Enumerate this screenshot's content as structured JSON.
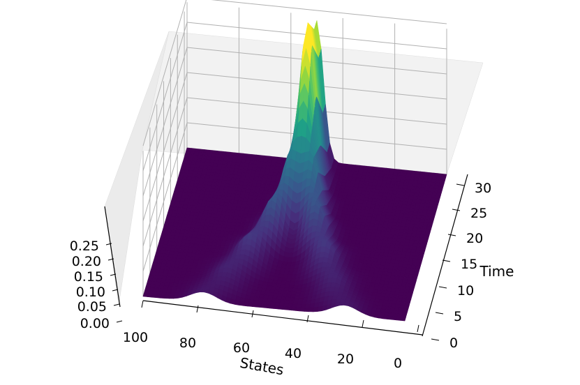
{
  "chart_data": {
    "type": "surface3d",
    "title": "",
    "xlabel": "States",
    "ylabel": "Time",
    "zlabel": "",
    "x_ticks": [
      "100",
      "80",
      "60",
      "40",
      "20",
      "0"
    ],
    "y_ticks": [
      "0",
      "5",
      "10",
      "15",
      "20",
      "25",
      "30"
    ],
    "z_ticks": [
      "0.00",
      "0.05",
      "0.10",
      "0.15",
      "0.20",
      "0.25"
    ],
    "xlim": [
      0,
      100
    ],
    "ylim": [
      0,
      32
    ],
    "zlim": [
      0,
      0.29
    ],
    "grid": true,
    "colormap": "viridis",
    "colormap_colors": [
      "#440154",
      "#46327e",
      "#365c8d",
      "#277f8e",
      "#1fa187",
      "#4ac16d",
      "#a0da39",
      "#fde725"
    ],
    "surface": {
      "description_values": {
        "initial_peaks_at_time_0": [
          {
            "state": 23,
            "value": 0.02
          },
          {
            "state": 77,
            "value": 0.02
          }
        ],
        "converging_peak_state": 50,
        "max_value": 0.28,
        "max_time": 30
      },
      "profile": [
        {
          "time": 0,
          "peaks": [
            {
              "center": 23,
              "height": 0.02,
              "width": 5
            },
            {
              "center": 77,
              "height": 0.02,
              "width": 5
            }
          ]
        },
        {
          "time": 5,
          "peaks": [
            {
              "center": 30,
              "height": 0.03,
              "width": 5
            },
            {
              "center": 70,
              "height": 0.03,
              "width": 5
            }
          ]
        },
        {
          "time": 10,
          "peaks": [
            {
              "center": 36,
              "height": 0.05,
              "width": 4.5
            },
            {
              "center": 64,
              "height": 0.05,
              "width": 4.5
            }
          ]
        },
        {
          "time": 15,
          "peaks": [
            {
              "center": 42,
              "height": 0.08,
              "width": 4
            },
            {
              "center": 58,
              "height": 0.08,
              "width": 4
            }
          ]
        },
        {
          "time": 20,
          "peaks": [
            {
              "center": 46,
              "height": 0.12,
              "width": 3.5
            },
            {
              "center": 54,
              "height": 0.12,
              "width": 3.5
            }
          ]
        },
        {
          "time": 25,
          "peaks": [
            {
              "center": 49,
              "height": 0.18,
              "width": 3
            },
            {
              "center": 51,
              "height": 0.18,
              "width": 3
            }
          ]
        },
        {
          "time": 30,
          "peaks": [
            {
              "center": 50,
              "height": 0.28,
              "width": 2.5
            }
          ]
        }
      ]
    }
  }
}
